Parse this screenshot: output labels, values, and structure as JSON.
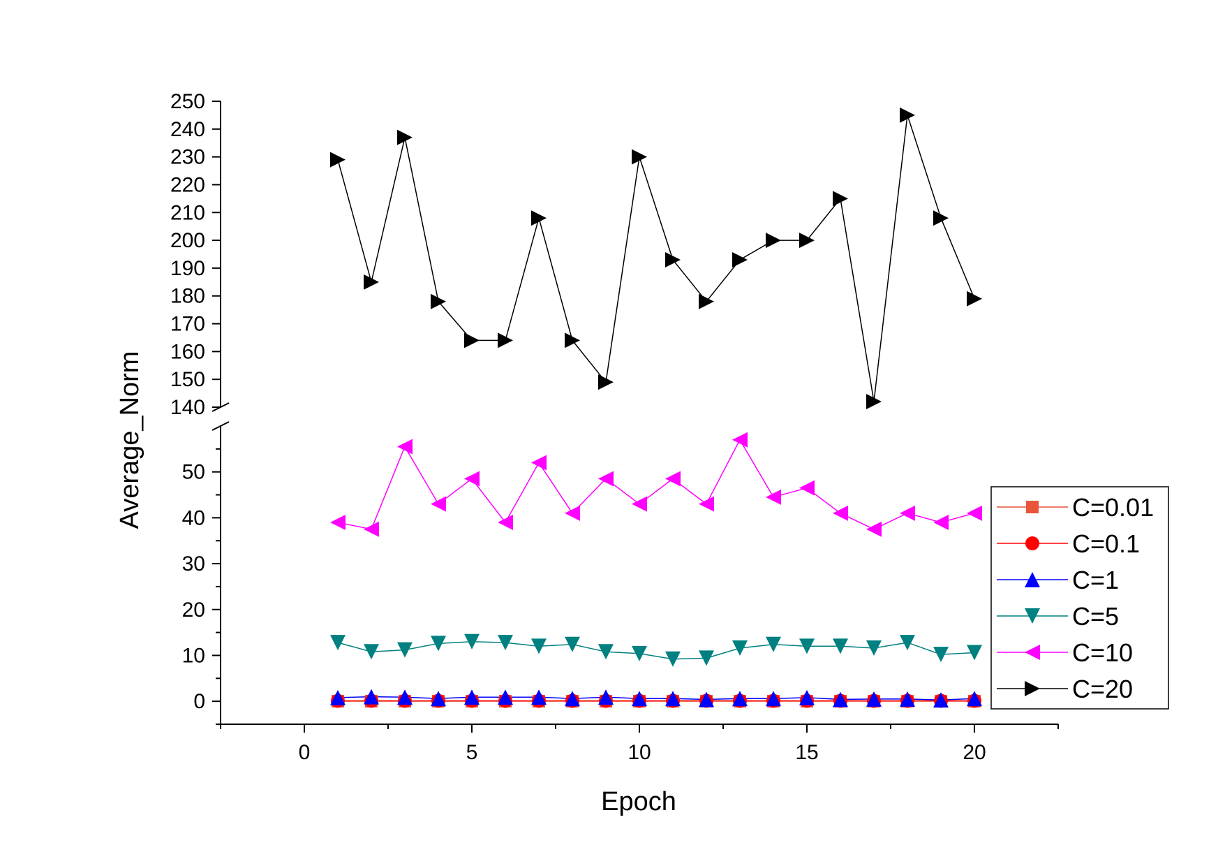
{
  "chart_data": {
    "type": "line",
    "xlabel": "Epoch",
    "ylabel": "Average_Norm",
    "x": [
      1,
      2,
      3,
      4,
      5,
      6,
      7,
      8,
      9,
      10,
      11,
      12,
      13,
      14,
      15,
      16,
      17,
      18,
      19,
      20
    ],
    "xlim": [
      -2.5,
      22.5
    ],
    "xticks": [
      0,
      5,
      10,
      15,
      20
    ],
    "y_axis_break": {
      "lower": {
        "ylim": [
          -5,
          60
        ],
        "ticks": [
          0,
          10,
          20,
          30,
          40,
          50
        ]
      },
      "upper": {
        "ylim": [
          140,
          250
        ],
        "ticks": [
          140,
          150,
          160,
          170,
          180,
          190,
          200,
          210,
          220,
          230,
          240,
          250
        ]
      }
    },
    "legend_position": "right",
    "series": [
      {
        "name": "C=0.01",
        "color": "#e8553a",
        "marker": "square",
        "values": [
          0.02,
          0.02,
          0.02,
          0.02,
          0.02,
          0.02,
          0.02,
          0.02,
          0.02,
          0.02,
          0.02,
          0.02,
          0.02,
          0.02,
          0.02,
          0.02,
          0.02,
          0.02,
          0.02,
          0.02
        ]
      },
      {
        "name": "C=0.1",
        "color": "#ff0000",
        "marker": "circle",
        "values": [
          0.1,
          0.1,
          0.1,
          0.1,
          0.1,
          0.1,
          0.1,
          0.1,
          0.1,
          0.1,
          0.1,
          0.1,
          0.1,
          0.1,
          0.1,
          0.1,
          0.1,
          0.1,
          0.1,
          0.1
        ]
      },
      {
        "name": "C=1",
        "color": "#0000ff",
        "marker": "triangle-up",
        "values": [
          0.8,
          1.0,
          0.9,
          0.6,
          0.9,
          0.9,
          0.9,
          0.6,
          0.9,
          0.6,
          0.6,
          0.4,
          0.6,
          0.6,
          0.8,
          0.4,
          0.5,
          0.5,
          0.3,
          0.6
        ]
      },
      {
        "name": "C=5",
        "color": "#008080",
        "marker": "triangle-down",
        "values": [
          12.8,
          10.8,
          11.2,
          12.6,
          13.0,
          12.8,
          12.0,
          12.4,
          10.8,
          10.4,
          9.2,
          9.4,
          11.6,
          12.4,
          12.0,
          12.0,
          11.6,
          12.8,
          10.2,
          10.6
        ]
      },
      {
        "name": "C=10",
        "color": "#ff00ff",
        "marker": "triangle-left",
        "values": [
          39.0,
          37.5,
          55.5,
          43.0,
          48.5,
          39.0,
          52.0,
          41.0,
          48.5,
          43.0,
          48.5,
          43.0,
          57.0,
          44.5,
          46.5,
          41.0,
          37.5,
          41.0,
          39.0,
          41.0
        ]
      },
      {
        "name": "C=20",
        "color": "#000000",
        "marker": "triangle-right",
        "values": [
          229,
          185,
          237,
          178,
          164,
          164,
          208,
          164,
          149,
          230,
          193,
          178,
          193,
          200,
          200,
          215,
          142,
          245,
          208,
          179
        ]
      }
    ]
  }
}
